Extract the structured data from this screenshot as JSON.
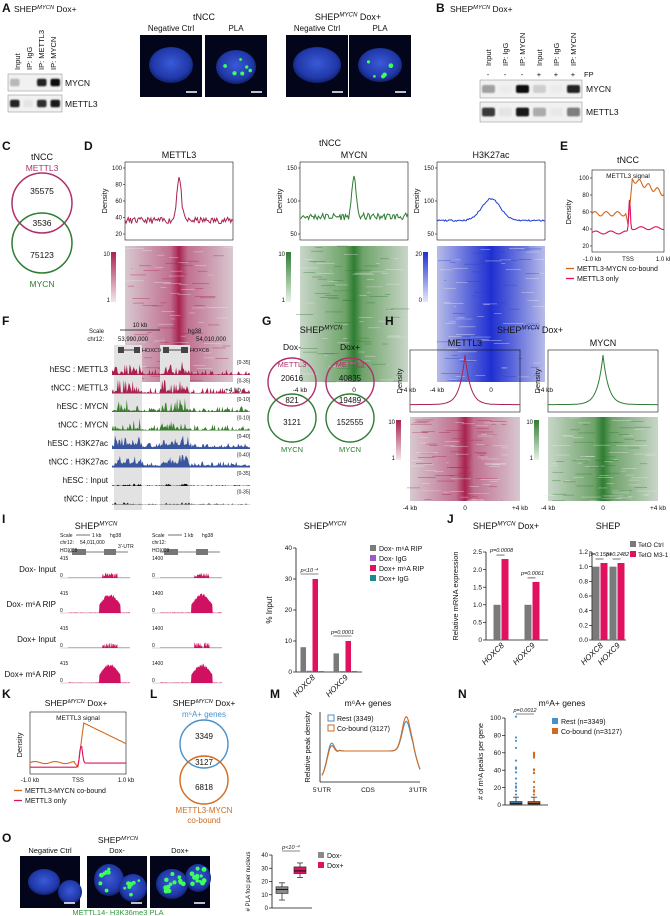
{
  "A": {
    "letter": "A",
    "title": {
      "base": "SHEP",
      "sup": "MYCN",
      "rest": " Dox+"
    },
    "lanes": [
      "Input",
      "IP: IgG",
      "IP: METTL3",
      "IP: MYCN"
    ],
    "blots": [
      "MYCN",
      "METTL3"
    ],
    "group1": "tNCC",
    "group2": {
      "base": "SHEP",
      "sup": "MYCN",
      "rest": " Dox+"
    },
    "images": [
      "Negative Ctrl",
      "PLA",
      "Negative Ctrl",
      "PLA"
    ]
  },
  "B": {
    "letter": "B",
    "title": {
      "base": "SHEP",
      "sup": "MYCN",
      "rest": " Dox+"
    },
    "lanes": [
      "Input",
      "IP: IgG",
      "IP: MYCN",
      "Input",
      "IP: IgG",
      "IP: MYCN"
    ],
    "fp_signs": [
      "-",
      "-",
      "-",
      "+",
      "+",
      "+"
    ],
    "fp": "FP",
    "blots": [
      "MYCN",
      "METTL3"
    ]
  },
  "C": {
    "letter": "C",
    "title": "tNCC",
    "top": "METTL3",
    "counts": [
      35575,
      3536,
      75123
    ],
    "bottom": "MYCN"
  },
  "D": {
    "letter": "D",
    "title": "tNCC",
    "plots": [
      {
        "head": "METTL3",
        "ylabel": "Density",
        "yticks": [
          100,
          80,
          60,
          40,
          20
        ],
        "scale": [
          10,
          1
        ]
      },
      {
        "head": "MYCN",
        "ylabel": "Density",
        "yticks": [
          150,
          100,
          50
        ],
        "scale": [
          10,
          1
        ]
      },
      {
        "head": "H3K27ac",
        "ylabel": "Density",
        "yticks": [
          150,
          100,
          50
        ],
        "scale": [
          20,
          0
        ]
      }
    ],
    "xlabels": [
      "-4 kb",
      "0",
      "+4 kb"
    ]
  },
  "E": {
    "letter": "E",
    "title": "tNCC",
    "subtitle": "METTL3 signal",
    "ylabel": "Density",
    "yticks": [
      100,
      80,
      60,
      40,
      20
    ],
    "xlabels": [
      "-1.0 kb",
      "TSS",
      "1.0 kb"
    ],
    "legend": [
      "METTL3-MYCN co-bound",
      "METTL3 only"
    ]
  },
  "F": {
    "letter": "F",
    "scale": "Scale",
    "scale_value": "10 kb",
    "genome": "hg38",
    "chrom": "chr12:",
    "coords": [
      "53,990,000",
      "54,010,000"
    ],
    "genes": [
      "HOXC9",
      "HOXC8"
    ],
    "tracks": [
      {
        "name": "hESC : METTL3",
        "range": "[0-35]"
      },
      {
        "name": "tNCC : METTL3",
        "range": "[0-35]"
      },
      {
        "name": "hESC : MYCN",
        "range": "[0-10]"
      },
      {
        "name": "tNCC : MYCN",
        "range": "[0-10]"
      },
      {
        "name": "hESC : H3K27ac",
        "range": "[0-40]"
      },
      {
        "name": "tNCC : H3K27ac",
        "range": "[0-40]"
      },
      {
        "name": "hESC : Input",
        "range": "[0-35]"
      },
      {
        "name": "tNCC : Input",
        "range": "[0-35]"
      }
    ]
  },
  "G": {
    "letter": "G",
    "title": {
      "base": "SHEP",
      "sup": "MYCN"
    },
    "conditions": [
      {
        "name": "Dox-",
        "top": "METTL3",
        "counts": [
          20616,
          821,
          3121
        ],
        "bottom": "MYCN"
      },
      {
        "name": "Dox+",
        "top": "METTL3",
        "counts": [
          40835,
          19489,
          152555
        ],
        "bottom": "MYCN"
      }
    ]
  },
  "H": {
    "letter": "H",
    "title": {
      "base": "SHEP",
      "sup": "MYCN",
      "rest": " Dox+"
    },
    "plots": [
      {
        "head": "METTL3",
        "ylabel": "Density",
        "scale": [
          10,
          1
        ]
      },
      {
        "head": "MYCN",
        "ylabel": "Density",
        "scale": [
          10,
          1
        ]
      }
    ],
    "xlabels": [
      "-4 kb",
      "0",
      "+4 kb"
    ]
  },
  "I": {
    "letter": "I",
    "browser_title": {
      "base": "SHEP",
      "sup": "MYCN"
    },
    "loci": [
      {
        "scale": "Scale",
        "scale_value": "1 kb",
        "genome": "hg38",
        "chrom": "chr12:",
        "coord": "54,011,000",
        "gene": "HOXC8",
        "feature": "3'-UTR"
      },
      {
        "scale": "Scale",
        "scale_value": "1 kb",
        "genome": "hg38",
        "chrom": "chr12:",
        "gene": "HOXC9"
      }
    ],
    "tracks": [
      {
        "name": "Dox- Input",
        "scales": [
          [
            0,
            415
          ],
          [
            0,
            1400
          ]
        ]
      },
      {
        "name": "Dox- m⁶A RIP",
        "scales": [
          [
            0,
            415
          ],
          [
            0,
            1400
          ]
        ]
      },
      {
        "name": "Dox+ Input",
        "scales": [
          [
            0,
            415
          ],
          [
            0,
            1400
          ]
        ]
      },
      {
        "name": "Dox+ m⁶A RIP",
        "scales": [
          [
            0,
            415
          ],
          [
            0,
            1400
          ]
        ]
      }
    ],
    "chart": {
      "type": "bar",
      "title": {
        "base": "SHEP",
        "sup": "MYCN"
      },
      "ylabel": "% Input",
      "ylim": [
        0,
        40
      ],
      "yticks": [
        0,
        10,
        20,
        30,
        40
      ],
      "categories": [
        "HOXC8",
        "HOXC9"
      ],
      "pvalues": [
        "p<10⁻⁴",
        "p=0.0001"
      ],
      "series": [
        {
          "name": "Dox- m⁶A RIP",
          "color": "#7a7a7a",
          "values": [
            8,
            6
          ]
        },
        {
          "name": "Dox- IgG",
          "color": "#9b59d0",
          "values": [
            0.4,
            0.3
          ]
        },
        {
          "name": "Dox+ m⁶A RIP",
          "color": "#e0115f",
          "values": [
            30,
            10
          ]
        },
        {
          "name": "Dox+ IgG",
          "color": "#1a8a8a",
          "values": [
            0.3,
            0.3
          ]
        }
      ]
    }
  },
  "J": {
    "letter": "J",
    "legend": [
      {
        "name": "TetO Ctrl",
        "color": "#7a7a7a"
      },
      {
        "name": "TetO M3-1",
        "color": "#e0115f"
      }
    ],
    "charts": [
      {
        "type": "bar",
        "title": {
          "base": "SHEP",
          "sup": "MYCN",
          "rest": " Dox+"
        },
        "ylabel": "Relative mRNA expression",
        "ylim": [
          0,
          2.5
        ],
        "yticks": [
          0,
          0.5,
          {
            "value": 1,
            "label": "1.0"
          },
          1.5,
          {
            "value": 2,
            "label": "2.0"
          },
          2.5
        ],
        "categories": [
          "HOXC8",
          "HOXC9"
        ],
        "pvalues": [
          "p=0.0008",
          "p=0.0061"
        ],
        "series": [
          {
            "values": [
              1,
              1
            ]
          },
          {
            "values": [
              2.3,
              1.65
            ]
          }
        ]
      },
      {
        "type": "bar",
        "title": "SHEP",
        "ylim": [
          0,
          1.2
        ],
        "yticks": [
          {
            "value": 0,
            "label": "0.0"
          },
          0.2,
          0.4,
          0.6,
          0.8,
          {
            "value": 1,
            "label": "1.0"
          },
          1.2
        ],
        "categories": [
          "HOXC8",
          "HOXC9"
        ],
        "pvalues": [
          "p=0.1551",
          "p=0.2482"
        ],
        "series": [
          {
            "values": [
              1,
              1
            ]
          },
          {
            "values": [
              1.05,
              1.05
            ]
          }
        ]
      }
    ]
  },
  "K": {
    "letter": "K",
    "title": {
      "base": "SHEP",
      "sup": "MYCN",
      "rest": " Dox+"
    },
    "subtitle": "METTL3 signal",
    "ylabel": "Density",
    "xlabels": [
      "-1.0 kb",
      "TSS",
      "1.0 kb"
    ],
    "legend": [
      "METTL3-MYCN co-bound",
      "METTL3 only"
    ]
  },
  "L": {
    "letter": "L",
    "title": {
      "base": "SHEP",
      "sup": "MYCN",
      "rest": " Dox+"
    },
    "top": "m⁶A+ genes",
    "counts": [
      3349,
      3127,
      6818
    ],
    "bottom": [
      "METTL3-MYCN",
      "co-bound"
    ]
  },
  "M": {
    "letter": "M",
    "title": "m⁶A+ genes",
    "ylabel": "Relative peak density",
    "legend": [
      {
        "name": "Rest (3349)",
        "color": "#4a90c8"
      },
      {
        "name": "Co-bound (3127)",
        "color": "#d2691e"
      }
    ],
    "xlabels": [
      "5'UTR",
      "CDS",
      "3'UTR"
    ]
  },
  "N": {
    "letter": "N",
    "title": "m⁶A+ genes",
    "ylabel": "# of m⁶A peaks per gene",
    "ylim": [
      0,
      100
    ],
    "yticks": [
      0,
      20,
      40,
      60,
      80,
      100
    ],
    "p": "p=0.0012",
    "series": [
      {
        "name": "Rest (n=3349)",
        "color": "#4a90c8",
        "box": [
          1,
          1,
          2,
          4,
          9
        ]
      },
      {
        "name": "Co-bound (n=3127)",
        "color": "#d2691e",
        "box": [
          1,
          1,
          2,
          4,
          9
        ]
      }
    ]
  },
  "O": {
    "letter": "O",
    "title": {
      "base": "SHEP",
      "sup": "MYCN"
    },
    "images": [
      "Negative Ctrl",
      "Dox-",
      "Dox+"
    ],
    "caption": "METTL14- H3K36me3 PLA",
    "ylabel": "# PLA foci per nucleus",
    "ylim": [
      0,
      40
    ],
    "yticks": [
      0,
      10,
      20,
      30,
      40
    ],
    "p": "p<10⁻⁴",
    "series": [
      {
        "name": "Dox-",
        "color": "#8a8a8a",
        "box": [
          6,
          11,
          14,
          16,
          19
        ]
      },
      {
        "name": "Dox+",
        "color": "#e0115f",
        "box": [
          23,
          26,
          28,
          31,
          34
        ]
      }
    ]
  }
}
